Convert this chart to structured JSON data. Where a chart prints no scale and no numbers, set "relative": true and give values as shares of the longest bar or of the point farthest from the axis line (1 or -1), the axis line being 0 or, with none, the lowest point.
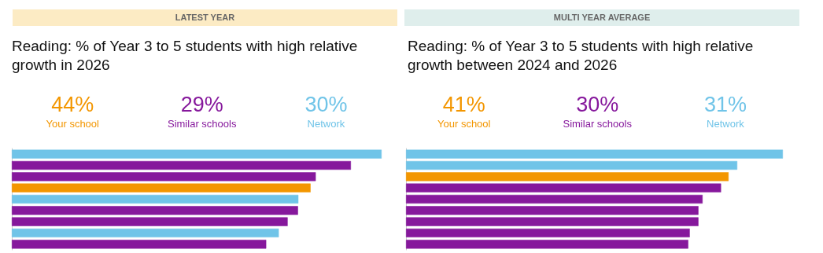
{
  "chart_data": [
    {
      "type": "bar",
      "orientation": "horizontal",
      "stacked": true,
      "relative": true,
      "title": "LATEST YEAR",
      "subtitle": "Reading: % of Year 3 to 5 students with high relative growth in 2026",
      "legend": "top",
      "annotations": [
        "44%",
        "29%",
        "30%"
      ],
      "categories": [
        null,
        null,
        null,
        null,
        null,
        null,
        null,
        null,
        null
      ],
      "series": [
        {
          "name": "Your school",
          "color": "#f39600",
          "values": [
            null,
            null,
            null,
            0.808,
            null,
            null,
            null,
            null,
            null
          ]
        },
        {
          "name": "Similar schools",
          "color": "#86189c",
          "values": [
            null,
            0.917,
            0.822,
            null,
            null,
            0.774,
            0.746,
            null,
            0.688
          ]
        },
        {
          "name": "Network",
          "color": "#70c4e8",
          "values": [
            1,
            null,
            null,
            null,
            0.775,
            null,
            null,
            0.722,
            null
          ]
        }
      ]
    },
    {
      "type": "bar",
      "orientation": "horizontal",
      "stacked": true,
      "relative": true,
      "title": "MULTI YEAR AVERAGE",
      "subtitle": "Reading: % of Year 3 to 5 students with high relative growth between 2024 and 2026",
      "legend": "top",
      "annotations": [
        "41%",
        "30%",
        "31%"
      ],
      "categories": [
        null,
        null,
        null,
        null,
        null,
        null,
        null,
        null,
        null
      ],
      "series": [
        {
          "name": "Your school",
          "color": "#f39600",
          "values": [
            null,
            null,
            0.856,
            null,
            null,
            null,
            null,
            null,
            null
          ]
        },
        {
          "name": "Similar schools",
          "color": "#86189c",
          "values": [
            null,
            null,
            null,
            0.836,
            0.787,
            0.776,
            0.776,
            0.753,
            0.749
          ]
        },
        {
          "name": "Network",
          "color": "#70c4e8",
          "values": [
            1,
            0.879,
            null,
            null,
            null,
            null,
            null,
            null,
            null
          ]
        }
      ]
    }
  ]
}
